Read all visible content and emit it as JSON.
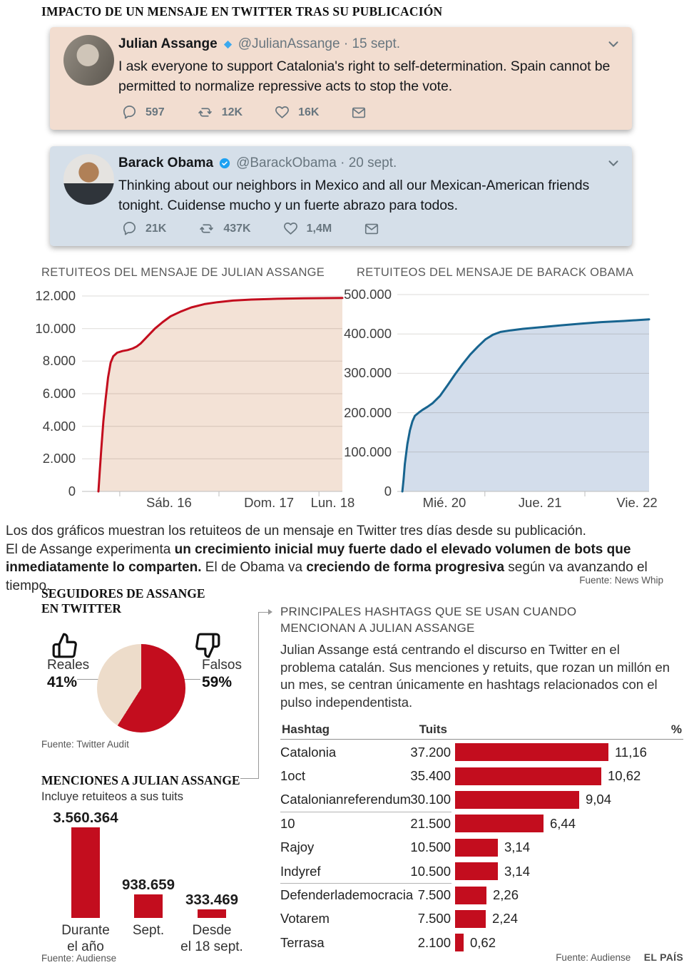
{
  "page": {
    "title": "IMPACTO DE UN MENSAJE EN TWITTER TRAS SU PUBLICACIÓN",
    "brand": "EL PAÍS"
  },
  "tweets": [
    {
      "name": "Julian Assange",
      "badge": "diamond",
      "handle": "@JulianAssange · 15 sept.",
      "text": "I ask everyone to support Catalonia's right to self-determination. Spain  cannot be permitted to normalize repressive acts to stop the vote.",
      "stats": {
        "replies": "597",
        "retweets": "12K",
        "likes": "16K"
      },
      "bg": "#f2ddd0"
    },
    {
      "name": "Barack Obama",
      "badge": "verified",
      "handle": "@BarackObama · 20 sept.",
      "text": "Thinking about our neighbors in Mexico and all our Mexican-American friends tonight. Cuidense mucho y un fuerte abrazo para todos.",
      "stats": {
        "replies": "21K",
        "retweets": "437K",
        "likes": "1,4M"
      },
      "bg": "#d5dfe9"
    }
  ],
  "intro": {
    "line1": "Los dos gráficos muestran los retuiteos de un mensaje en Twitter tres días desde su publicación.",
    "seg1": "El de Assange experimenta ",
    "seg2_bold": "un crecimiento inicial muy fuerte dado el elevado volumen de bots que inmediatamente lo comparten.",
    "seg3": " El de Obama va ",
    "seg4_bold": "creciendo de forma progresiva",
    "seg5": " según va avanzando el tiempo."
  },
  "sections": {
    "followers_title_line1": "SEGUIDORES DE ASSANGE",
    "followers_title_line2": "EN TWITTER",
    "hashtags_title_line1": "PRINCIPALES HASHTAGS QUE SE USAN CUANDO",
    "hashtags_title_line2": "MENCIONAN A JULIAN ASSANGE",
    "hashtags_paragraph": "Julian Assange está centrando el discurso en Twitter en el problema catalán. Sus menciones y retuits, que rozan un millón en un mes, se centran únicamente en hashtags relacionados con el pulso independentista."
  },
  "sources": {
    "news_whip": "Fuente: News Whip",
    "twitter_audit": "Fuente: Twitter Audit",
    "audiense": "Fuente: Audiense",
    "footer": "Fuente: Audiense"
  },
  "colors": {
    "red": "#c30d1e",
    "beige": "#eddcca",
    "salmon_fill": "#f3e2d6",
    "blue_line": "#17648f",
    "blue_fill": "#d3ddeb",
    "twitter_blue": "#1da1f2"
  },
  "chart_data": {
    "assange_retweets": {
      "type": "area-line",
      "title": "RETUITEOS DEL MENSAJE DE JULIAN ASSANGE",
      "line_color": "#c30d1e",
      "fill_color": "#f3e2d6",
      "ylim": [
        0,
        12000
      ],
      "y_ticks": [
        {
          "v": 12000,
          "label": "12.000"
        },
        {
          "v": 10000,
          "label": "10.000"
        },
        {
          "v": 8000,
          "label": "8.000"
        },
        {
          "v": 6000,
          "label": "6.000"
        },
        {
          "v": 4000,
          "label": "4.000"
        },
        {
          "v": 2000,
          "label": "2.000"
        },
        {
          "v": 0,
          "label": "0"
        }
      ],
      "x_ticks": [
        0.145,
        0.526,
        0.91
      ],
      "x_labels": [
        {
          "pos": 0.334,
          "label": "Sáb. 16"
        },
        {
          "pos": 0.718,
          "label": "Dom. 17"
        },
        {
          "pos": 0.963,
          "label": "Lun. 18"
        }
      ],
      "points": [
        [
          0.063,
          0
        ],
        [
          0.068,
          1200
        ],
        [
          0.074,
          2600
        ],
        [
          0.082,
          4300
        ],
        [
          0.09,
          5600
        ],
        [
          0.1,
          7000
        ],
        [
          0.11,
          7900
        ],
        [
          0.12,
          8300
        ],
        [
          0.135,
          8520
        ],
        [
          0.155,
          8620
        ],
        [
          0.175,
          8680
        ],
        [
          0.195,
          8780
        ],
        [
          0.21,
          8900
        ],
        [
          0.225,
          9080
        ],
        [
          0.25,
          9500
        ],
        [
          0.28,
          10000
        ],
        [
          0.31,
          10400
        ],
        [
          0.34,
          10750
        ],
        [
          0.38,
          11050
        ],
        [
          0.42,
          11300
        ],
        [
          0.47,
          11500
        ],
        [
          0.52,
          11620
        ],
        [
          0.58,
          11720
        ],
        [
          0.65,
          11780
        ],
        [
          0.75,
          11830
        ],
        [
          0.85,
          11860
        ],
        [
          1.0,
          11880
        ]
      ]
    },
    "obama_retweets": {
      "type": "area-line",
      "title": "RETUITEOS DEL MENSAJE DE BARACK OBAMA",
      "line_color": "#17648f",
      "fill_color": "#d3ddeb",
      "ylim": [
        0,
        500000
      ],
      "y_ticks": [
        {
          "v": 500000,
          "label": "500.000"
        },
        {
          "v": 400000,
          "label": "400.000"
        },
        {
          "v": 300000,
          "label": "300.000"
        },
        {
          "v": 200000,
          "label": "200.000"
        },
        {
          "v": 100000,
          "label": "100.000"
        },
        {
          "v": 0,
          "label": "0"
        }
      ],
      "x_ticks": [
        0.348,
        0.745
      ],
      "x_labels": [
        {
          "pos": 0.187,
          "label": "Mié. 20"
        },
        {
          "pos": 0.567,
          "label": "Jue. 21"
        },
        {
          "pos": 0.952,
          "label": "Vie. 22"
        }
      ],
      "points": [
        [
          0.02,
          0
        ],
        [
          0.025,
          30000
        ],
        [
          0.03,
          70000
        ],
        [
          0.04,
          120000
        ],
        [
          0.05,
          155000
        ],
        [
          0.06,
          178000
        ],
        [
          0.07,
          192000
        ],
        [
          0.085,
          200000
        ],
        [
          0.1,
          207000
        ],
        [
          0.12,
          215000
        ],
        [
          0.14,
          224000
        ],
        [
          0.17,
          243000
        ],
        [
          0.2,
          270000
        ],
        [
          0.23,
          298000
        ],
        [
          0.26,
          324000
        ],
        [
          0.29,
          348000
        ],
        [
          0.32,
          368000
        ],
        [
          0.35,
          386000
        ],
        [
          0.38,
          398000
        ],
        [
          0.41,
          405000
        ],
        [
          0.45,
          409000
        ],
        [
          0.5,
          413000
        ],
        [
          0.57,
          417000
        ],
        [
          0.65,
          422000
        ],
        [
          0.73,
          426000
        ],
        [
          0.81,
          430000
        ],
        [
          0.9,
          433000
        ],
        [
          1.0,
          437000
        ]
      ]
    },
    "followers_pie": {
      "type": "pie",
      "start": "top",
      "direction": "clockwise",
      "slices": [
        {
          "label": "Falsos",
          "pct": 59,
          "pct_label": "59%",
          "color": "#c30d1e"
        },
        {
          "label": "Reales",
          "pct": 41,
          "pct_label": "41%",
          "color": "#eddcca"
        }
      ]
    },
    "mentions_bar": {
      "type": "bar",
      "title": "MENCIONES A JULIAN ASSANGE",
      "subtitle": "Incluye retuiteos a sus tuits",
      "color": "#c30d1e",
      "bars": [
        {
          "value": 3560364,
          "label": "3.560.364",
          "category": [
            "Durante",
            "el año"
          ]
        },
        {
          "value": 938659,
          "label": "938.659",
          "category": [
            "Sept."
          ]
        },
        {
          "value": 333469,
          "label": "333.469",
          "category": [
            "Desde",
            "el 18 sept."
          ]
        }
      ]
    },
    "hashtags_table": {
      "type": "table-bar",
      "columns": [
        "Hashtag",
        "Tuits",
        "%"
      ],
      "max_pct": 11.16,
      "bar_color": "#c30d1e",
      "group_breaks": [
        3,
        6
      ],
      "rows": [
        {
          "hashtag": "Catalonia",
          "tuits": "37.200",
          "pct": 11.16,
          "pct_label": "11,16"
        },
        {
          "hashtag": "1oct",
          "tuits": "35.400",
          "pct": 10.62,
          "pct_label": "10,62"
        },
        {
          "hashtag": "Catalonianreferendum",
          "tuits": "30.100",
          "pct": 9.04,
          "pct_label": "9,04"
        },
        {
          "hashtag": "10",
          "tuits": "21.500",
          "pct": 6.44,
          "pct_label": "6,44"
        },
        {
          "hashtag": "Rajoy",
          "tuits": "10.500",
          "pct": 3.14,
          "pct_label": "3,14"
        },
        {
          "hashtag": "Indyref",
          "tuits": "10.500",
          "pct": 3.14,
          "pct_label": "3,14"
        },
        {
          "hashtag": "Defenderlademocracia",
          "tuits": "7.500",
          "pct": 2.26,
          "pct_label": "2,26"
        },
        {
          "hashtag": "Votarem",
          "tuits": "7.500",
          "pct": 2.24,
          "pct_label": "2,24"
        },
        {
          "hashtag": "Terrasa",
          "tuits": "2.100",
          "pct": 0.62,
          "pct_label": "0,62"
        }
      ]
    }
  }
}
